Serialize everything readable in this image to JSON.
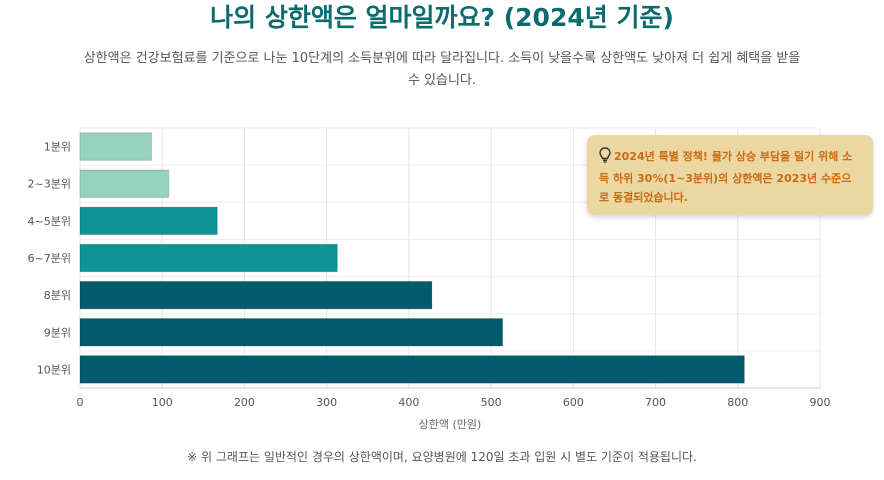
{
  "title": "나의 상한액은 얼마일까요? (2024년 기준)",
  "subtitle": "상한액은 건강보험료를 기준으로 나눈 10단계의 소득분위에 따라 달라집니다. 소득이 낮을수록 상한액도 낮아져 더 쉽게 혜택을 받을 수 있습니다.",
  "callout": {
    "icon": "lightbulb-icon",
    "text": "2024년 특별 정책! 물가 상승 부담을 덜기 위해 소득 하위 30%(1~3분위)의 상한액은 2023년 수준으로 동결되었습니다."
  },
  "footnote": "※ 위 그래프는 일반적인 경우의 상한액이며, 요양병원에 120일 초과 입원 시 별도 기준이 적용됩니다.",
  "chart_data": {
    "type": "bar",
    "orientation": "horizontal",
    "categories": [
      "1분위",
      "2~3분위",
      "4~5분위",
      "6~7분위",
      "8분위",
      "9분위",
      "10분위"
    ],
    "values": [
      87,
      108,
      167,
      313,
      428,
      514,
      808
    ],
    "colors": [
      "#95d3bf",
      "#95d3bf",
      "#0f9394",
      "#0f9394",
      "#015b6b",
      "#015b6b",
      "#015b6b"
    ],
    "xlabel": "상한액 (만원)",
    "ylabel": "",
    "xlim": [
      0,
      900
    ],
    "xticks": [
      0,
      100,
      200,
      300,
      400,
      500,
      600,
      700,
      800,
      900
    ],
    "grid": true,
    "legend": "none"
  }
}
